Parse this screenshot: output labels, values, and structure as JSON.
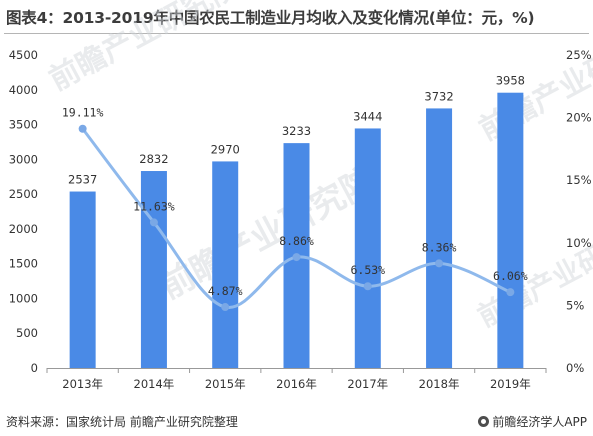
{
  "title": "图表4：2013-2019年中国农民工制造业月均收入及变化情况(单位：元，%)",
  "source": "资料来源：国家统计局 前瞻产业研究院整理",
  "brand": "前瞻经济学人APP",
  "watermark": "前瞻产业研究院",
  "colors": {
    "bar": "#4a8ae6",
    "line": "#8fb9ec",
    "marker": "#7aa8e6",
    "axis": "#999999",
    "text": "#333333"
  },
  "chart_data": {
    "type": "bar+line",
    "categories": [
      "2013年",
      "2014年",
      "2015年",
      "2016年",
      "2017年",
      "2018年",
      "2019年"
    ],
    "series": [
      {
        "type": "bar",
        "axis": "left",
        "values": [
          2537,
          2832,
          2970,
          3233,
          3444,
          3732,
          3958
        ]
      },
      {
        "type": "line",
        "axis": "right",
        "values": [
          19.11,
          11.63,
          4.87,
          8.86,
          6.53,
          8.36,
          6.06
        ],
        "labels": [
          "19.11%",
          "11.63%",
          "4.87%",
          "8.86%",
          "6.53%",
          "8.36%",
          "6.06%"
        ]
      }
    ],
    "y_left": {
      "min": 0,
      "max": 4500,
      "ticks": [
        0,
        500,
        1000,
        1500,
        2000,
        2500,
        3000,
        3500,
        4000,
        4500
      ]
    },
    "y_right": {
      "min": 0,
      "max": 25,
      "ticks": [
        "0%",
        "5%",
        "10%",
        "15%",
        "20%",
        "25%"
      ]
    },
    "grid": false,
    "legend": "none"
  }
}
